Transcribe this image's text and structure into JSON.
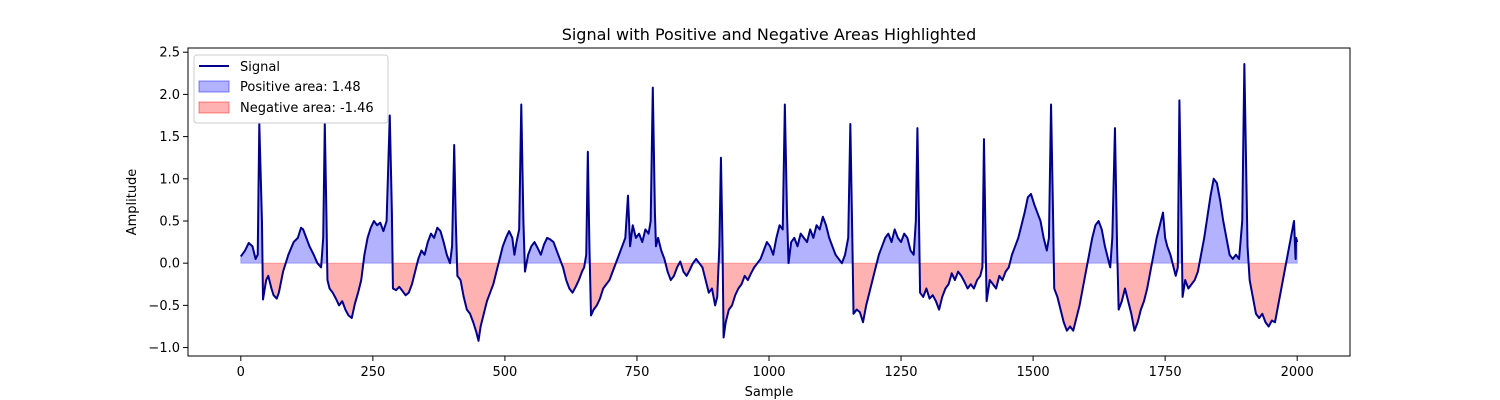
{
  "chart_data": {
    "type": "area",
    "title": "Signal with Positive and Negative Areas Highlighted",
    "xlabel": "Sample",
    "ylabel": "Amplitude",
    "xlim": [
      -100,
      2100
    ],
    "ylim": [
      -1.1,
      2.55
    ],
    "xticks": [
      0,
      250,
      500,
      750,
      1000,
      1250,
      1500,
      1750,
      2000
    ],
    "xtick_labels": [
      "0",
      "250",
      "500",
      "750",
      "1000",
      "1250",
      "1500",
      "1750",
      "2000"
    ],
    "yticks": [
      -1.0,
      -0.5,
      0.0,
      0.5,
      1.0,
      1.5,
      2.0,
      2.5
    ],
    "ytick_labels": [
      "−1.0",
      "−0.5",
      "0.0",
      "0.5",
      "1.0",
      "1.5",
      "2.0",
      "2.5"
    ],
    "grid": false,
    "legend_position": "upper-left",
    "colors": {
      "signal": "#00008b",
      "positive_fill": "#0000ff",
      "negative_fill": "#ff0000",
      "fill_alpha": 0.3
    },
    "series": [
      {
        "name": "Signal",
        "kind": "line"
      },
      {
        "name": "Positive area: 1.48",
        "kind": "fill-positive"
      },
      {
        "name": "Negative area: -1.46",
        "kind": "fill-negative"
      }
    ],
    "points": [
      [
        0,
        0.08
      ],
      [
        8,
        0.15
      ],
      [
        15,
        0.24
      ],
      [
        22,
        0.2
      ],
      [
        28,
        0.05
      ],
      [
        32,
        0.1
      ],
      [
        35,
        1.65
      ],
      [
        40,
        0.5
      ],
      [
        42,
        -0.43
      ],
      [
        48,
        -0.2
      ],
      [
        52,
        -0.15
      ],
      [
        58,
        -0.3
      ],
      [
        62,
        -0.38
      ],
      [
        68,
        -0.42
      ],
      [
        72,
        -0.35
      ],
      [
        80,
        -0.1
      ],
      [
        90,
        0.1
      ],
      [
        100,
        0.25
      ],
      [
        108,
        0.3
      ],
      [
        114,
        0.42
      ],
      [
        118,
        0.4
      ],
      [
        124,
        0.3
      ],
      [
        130,
        0.2
      ],
      [
        138,
        0.1
      ],
      [
        145,
        0.0
      ],
      [
        152,
        -0.05
      ],
      [
        156,
        0.3
      ],
      [
        159,
        1.65
      ],
      [
        162,
        0.6
      ],
      [
        164,
        -0.2
      ],
      [
        168,
        -0.3
      ],
      [
        174,
        -0.35
      ],
      [
        180,
        -0.42
      ],
      [
        186,
        -0.5
      ],
      [
        192,
        -0.45
      ],
      [
        198,
        -0.55
      ],
      [
        204,
        -0.62
      ],
      [
        210,
        -0.65
      ],
      [
        216,
        -0.48
      ],
      [
        222,
        -0.35
      ],
      [
        228,
        -0.2
      ],
      [
        234,
        0.1
      ],
      [
        240,
        0.3
      ],
      [
        246,
        0.42
      ],
      [
        252,
        0.5
      ],
      [
        258,
        0.45
      ],
      [
        264,
        0.48
      ],
      [
        270,
        0.38
      ],
      [
        276,
        0.5
      ],
      [
        282,
        1.75
      ],
      [
        286,
        0.6
      ],
      [
        288,
        -0.3
      ],
      [
        294,
        -0.32
      ],
      [
        300,
        -0.28
      ],
      [
        306,
        -0.33
      ],
      [
        312,
        -0.38
      ],
      [
        318,
        -0.35
      ],
      [
        324,
        -0.25
      ],
      [
        330,
        -0.1
      ],
      [
        336,
        0.05
      ],
      [
        342,
        0.15
      ],
      [
        348,
        0.1
      ],
      [
        354,
        0.25
      ],
      [
        360,
        0.35
      ],
      [
        366,
        0.3
      ],
      [
        372,
        0.42
      ],
      [
        378,
        0.38
      ],
      [
        384,
        0.25
      ],
      [
        390,
        0.1
      ],
      [
        396,
        0.0
      ],
      [
        400,
        0.2
      ],
      [
        404,
        1.4
      ],
      [
        407,
        0.5
      ],
      [
        410,
        -0.15
      ],
      [
        416,
        -0.2
      ],
      [
        422,
        -0.4
      ],
      [
        428,
        -0.55
      ],
      [
        434,
        -0.6
      ],
      [
        440,
        -0.7
      ],
      [
        446,
        -0.82
      ],
      [
        450,
        -0.92
      ],
      [
        454,
        -0.75
      ],
      [
        460,
        -0.6
      ],
      [
        466,
        -0.45
      ],
      [
        472,
        -0.35
      ],
      [
        478,
        -0.25
      ],
      [
        484,
        -0.1
      ],
      [
        490,
        0.05
      ],
      [
        496,
        0.2
      ],
      [
        502,
        0.3
      ],
      [
        508,
        0.38
      ],
      [
        514,
        0.3
      ],
      [
        518,
        0.1
      ],
      [
        522,
        0.25
      ],
      [
        527,
        0.4
      ],
      [
        531,
        1.88
      ],
      [
        535,
        0.5
      ],
      [
        538,
        -0.1
      ],
      [
        544,
        0.1
      ],
      [
        550,
        0.2
      ],
      [
        556,
        0.25
      ],
      [
        562,
        0.18
      ],
      [
        568,
        0.1
      ],
      [
        574,
        0.22
      ],
      [
        580,
        0.3
      ],
      [
        586,
        0.28
      ],
      [
        592,
        0.25
      ],
      [
        598,
        0.15
      ],
      [
        604,
        0.05
      ],
      [
        610,
        -0.05
      ],
      [
        616,
        -0.2
      ],
      [
        622,
        -0.3
      ],
      [
        628,
        -0.35
      ],
      [
        634,
        -0.28
      ],
      [
        640,
        -0.2
      ],
      [
        646,
        -0.1
      ],
      [
        650,
        -0.05
      ],
      [
        654,
        0.1
      ],
      [
        657,
        1.32
      ],
      [
        660,
        0.2
      ],
      [
        663,
        -0.62
      ],
      [
        668,
        -0.55
      ],
      [
        674,
        -0.5
      ],
      [
        680,
        -0.42
      ],
      [
        686,
        -0.3
      ],
      [
        692,
        -0.25
      ],
      [
        698,
        -0.2
      ],
      [
        704,
        -0.1
      ],
      [
        710,
        0.0
      ],
      [
        716,
        0.1
      ],
      [
        722,
        0.2
      ],
      [
        728,
        0.3
      ],
      [
        733,
        0.8
      ],
      [
        737,
        0.2
      ],
      [
        742,
        0.45
      ],
      [
        748,
        0.3
      ],
      [
        754,
        0.35
      ],
      [
        760,
        0.25
      ],
      [
        766,
        0.4
      ],
      [
        772,
        0.35
      ],
      [
        776,
        0.5
      ],
      [
        780,
        2.08
      ],
      [
        784,
        0.6
      ],
      [
        786,
        0.2
      ],
      [
        790,
        0.3
      ],
      [
        796,
        0.15
      ],
      [
        802,
        0.05
      ],
      [
        808,
        -0.1
      ],
      [
        814,
        -0.2
      ],
      [
        820,
        -0.15
      ],
      [
        826,
        -0.05
      ],
      [
        832,
        0.02
      ],
      [
        838,
        -0.1
      ],
      [
        844,
        -0.15
      ],
      [
        850,
        -0.08
      ],
      [
        856,
        0.0
      ],
      [
        862,
        0.05
      ],
      [
        868,
        0.0
      ],
      [
        874,
        -0.05
      ],
      [
        880,
        -0.2
      ],
      [
        886,
        -0.35
      ],
      [
        892,
        -0.3
      ],
      [
        898,
        -0.5
      ],
      [
        902,
        -0.4
      ],
      [
        906,
        0.2
      ],
      [
        909,
        1.25
      ],
      [
        912,
        0.2
      ],
      [
        914,
        -0.88
      ],
      [
        918,
        -0.7
      ],
      [
        924,
        -0.55
      ],
      [
        930,
        -0.5
      ],
      [
        936,
        -0.38
      ],
      [
        942,
        -0.3
      ],
      [
        948,
        -0.25
      ],
      [
        954,
        -0.15
      ],
      [
        960,
        -0.2
      ],
      [
        966,
        -0.12
      ],
      [
        972,
        -0.05
      ],
      [
        978,
        0.0
      ],
      [
        984,
        0.05
      ],
      [
        990,
        0.15
      ],
      [
        996,
        0.25
      ],
      [
        1002,
        0.2
      ],
      [
        1008,
        0.1
      ],
      [
        1014,
        0.3
      ],
      [
        1020,
        0.45
      ],
      [
        1026,
        0.4
      ],
      [
        1030,
        1.88
      ],
      [
        1034,
        0.6
      ],
      [
        1037,
        0.0
      ],
      [
        1042,
        0.25
      ],
      [
        1048,
        0.3
      ],
      [
        1054,
        0.2
      ],
      [
        1060,
        0.35
      ],
      [
        1066,
        0.3
      ],
      [
        1072,
        0.25
      ],
      [
        1078,
        0.4
      ],
      [
        1084,
        0.3
      ],
      [
        1090,
        0.45
      ],
      [
        1096,
        0.4
      ],
      [
        1102,
        0.55
      ],
      [
        1108,
        0.45
      ],
      [
        1114,
        0.3
      ],
      [
        1120,
        0.2
      ],
      [
        1126,
        0.1
      ],
      [
        1132,
        0.05
      ],
      [
        1138,
        0.0
      ],
      [
        1144,
        0.1
      ],
      [
        1150,
        0.3
      ],
      [
        1154,
        1.65
      ],
      [
        1158,
        0.2
      ],
      [
        1160,
        -0.6
      ],
      [
        1166,
        -0.55
      ],
      [
        1172,
        -0.58
      ],
      [
        1178,
        -0.7
      ],
      [
        1184,
        -0.5
      ],
      [
        1190,
        -0.35
      ],
      [
        1196,
        -0.2
      ],
      [
        1202,
        -0.05
      ],
      [
        1208,
        0.1
      ],
      [
        1214,
        0.2
      ],
      [
        1220,
        0.3
      ],
      [
        1226,
        0.35
      ],
      [
        1232,
        0.25
      ],
      [
        1238,
        0.4
      ],
      [
        1244,
        0.3
      ],
      [
        1250,
        0.25
      ],
      [
        1256,
        0.35
      ],
      [
        1262,
        0.3
      ],
      [
        1268,
        0.15
      ],
      [
        1274,
        0.1
      ],
      [
        1278,
        0.5
      ],
      [
        1281,
        1.6
      ],
      [
        1284,
        0.5
      ],
      [
        1286,
        -0.35
      ],
      [
        1292,
        -0.4
      ],
      [
        1298,
        -0.3
      ],
      [
        1304,
        -0.42
      ],
      [
        1310,
        -0.38
      ],
      [
        1316,
        -0.45
      ],
      [
        1322,
        -0.55
      ],
      [
        1328,
        -0.4
      ],
      [
        1334,
        -0.3
      ],
      [
        1340,
        -0.25
      ],
      [
        1346,
        -0.12
      ],
      [
        1352,
        -0.2
      ],
      [
        1358,
        -0.1
      ],
      [
        1364,
        -0.15
      ],
      [
        1370,
        -0.22
      ],
      [
        1376,
        -0.3
      ],
      [
        1382,
        -0.25
      ],
      [
        1388,
        -0.3
      ],
      [
        1394,
        -0.2
      ],
      [
        1400,
        -0.15
      ],
      [
        1404,
        -0.05
      ],
      [
        1407,
        1.47
      ],
      [
        1410,
        0.3
      ],
      [
        1412,
        -0.45
      ],
      [
        1418,
        -0.2
      ],
      [
        1424,
        -0.25
      ],
      [
        1430,
        -0.3
      ],
      [
        1436,
        -0.15
      ],
      [
        1442,
        -0.2
      ],
      [
        1448,
        -0.1
      ],
      [
        1454,
        -0.05
      ],
      [
        1460,
        0.1
      ],
      [
        1466,
        0.2
      ],
      [
        1472,
        0.3
      ],
      [
        1478,
        0.45
      ],
      [
        1484,
        0.6
      ],
      [
        1490,
        0.78
      ],
      [
        1496,
        0.82
      ],
      [
        1502,
        0.7
      ],
      [
        1508,
        0.6
      ],
      [
        1514,
        0.5
      ],
      [
        1520,
        0.3
      ],
      [
        1526,
        0.15
      ],
      [
        1530,
        0.3
      ],
      [
        1534,
        1.88
      ],
      [
        1538,
        0.5
      ],
      [
        1540,
        -0.3
      ],
      [
        1546,
        -0.4
      ],
      [
        1552,
        -0.55
      ],
      [
        1558,
        -0.7
      ],
      [
        1564,
        -0.8
      ],
      [
        1570,
        -0.75
      ],
      [
        1576,
        -0.8
      ],
      [
        1582,
        -0.65
      ],
      [
        1588,
        -0.5
      ],
      [
        1594,
        -0.3
      ],
      [
        1600,
        -0.1
      ],
      [
        1606,
        0.1
      ],
      [
        1612,
        0.3
      ],
      [
        1618,
        0.45
      ],
      [
        1624,
        0.5
      ],
      [
        1630,
        0.4
      ],
      [
        1636,
        0.2
      ],
      [
        1642,
        0.05
      ],
      [
        1646,
        -0.05
      ],
      [
        1650,
        0.3
      ],
      [
        1655,
        1.6
      ],
      [
        1659,
        0.2
      ],
      [
        1662,
        -0.55
      ],
      [
        1668,
        -0.45
      ],
      [
        1674,
        -0.3
      ],
      [
        1680,
        -0.45
      ],
      [
        1686,
        -0.6
      ],
      [
        1692,
        -0.8
      ],
      [
        1698,
        -0.7
      ],
      [
        1704,
        -0.55
      ],
      [
        1710,
        -0.45
      ],
      [
        1716,
        -0.3
      ],
      [
        1722,
        -0.1
      ],
      [
        1728,
        0.1
      ],
      [
        1734,
        0.3
      ],
      [
        1740,
        0.45
      ],
      [
        1746,
        0.6
      ],
      [
        1750,
        0.3
      ],
      [
        1754,
        0.2
      ],
      [
        1760,
        0.1
      ],
      [
        1766,
        -0.05
      ],
      [
        1770,
        -0.15
      ],
      [
        1774,
        -0.05
      ],
      [
        1777,
        1.93
      ],
      [
        1781,
        0.5
      ],
      [
        1783,
        -0.4
      ],
      [
        1788,
        -0.2
      ],
      [
        1794,
        -0.3
      ],
      [
        1800,
        -0.25
      ],
      [
        1806,
        -0.2
      ],
      [
        1812,
        -0.1
      ],
      [
        1818,
        0.1
      ],
      [
        1824,
        0.3
      ],
      [
        1830,
        0.55
      ],
      [
        1836,
        0.8
      ],
      [
        1842,
        1.0
      ],
      [
        1848,
        0.95
      ],
      [
        1854,
        0.75
      ],
      [
        1860,
        0.5
      ],
      [
        1866,
        0.3
      ],
      [
        1872,
        0.1
      ],
      [
        1878,
        0.05
      ],
      [
        1884,
        0.1
      ],
      [
        1890,
        0.05
      ],
      [
        1896,
        0.5
      ],
      [
        1900,
        2.36
      ],
      [
        1904,
        0.9
      ],
      [
        1906,
        0.2
      ],
      [
        1910,
        -0.2
      ],
      [
        1916,
        -0.4
      ],
      [
        1922,
        -0.6
      ],
      [
        1928,
        -0.65
      ],
      [
        1934,
        -0.6
      ],
      [
        1940,
        -0.7
      ],
      [
        1946,
        -0.75
      ],
      [
        1952,
        -0.68
      ],
      [
        1958,
        -0.7
      ],
      [
        1964,
        -0.5
      ],
      [
        1970,
        -0.3
      ],
      [
        1976,
        -0.1
      ],
      [
        1982,
        0.1
      ],
      [
        1988,
        0.3
      ],
      [
        1994,
        0.5
      ],
      [
        1997,
        0.05
      ],
      [
        1998,
        0.3
      ],
      [
        2000,
        0.25
      ]
    ]
  }
}
